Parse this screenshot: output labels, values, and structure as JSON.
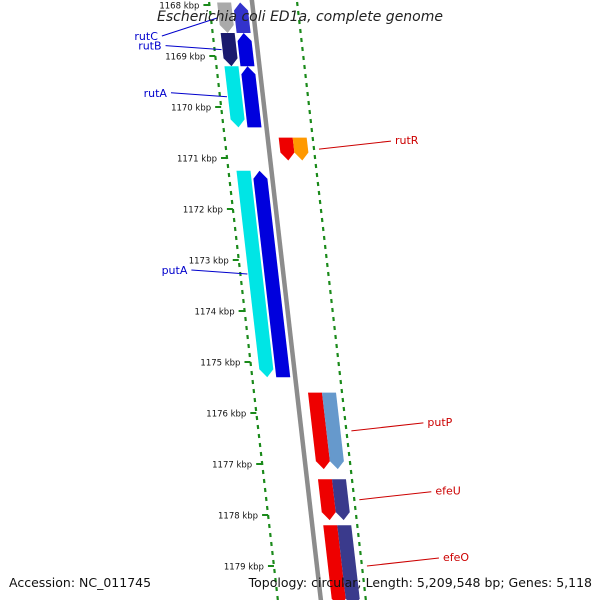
{
  "title": "Escherichia coli ED1a, complete genome",
  "footer": {
    "accession": "Accession: NC_011745",
    "topology": "Topology: circular; Length: 5,209,548 bp; Genes: 5,118"
  },
  "axis": {
    "ticks": [
      {
        "label": "1168 kbp",
        "kbp": 1168
      },
      {
        "label": "1169 kbp",
        "kbp": 1169
      },
      {
        "label": "1170 kbp",
        "kbp": 1170
      },
      {
        "label": "1171 kbp",
        "kbp": 1171
      },
      {
        "label": "1172 kbp",
        "kbp": 1172
      },
      {
        "label": "1173 kbp",
        "kbp": 1173
      },
      {
        "label": "1174 kbp",
        "kbp": 1174
      },
      {
        "label": "1175 kbp",
        "kbp": 1175
      },
      {
        "label": "1176 kbp",
        "kbp": 1176
      },
      {
        "label": "1177 kbp",
        "kbp": 1177
      },
      {
        "label": "1178 kbp",
        "kbp": 1178
      },
      {
        "label": "1179 kbp",
        "kbp": 1179
      }
    ]
  },
  "genes": [
    {
      "name": "rutC",
      "label_color": "#0000cc",
      "strand": "-",
      "start": 1167.95,
      "end": 1168.55,
      "fill": "#aaaaaa",
      "fill2": "#3333cc"
    },
    {
      "name": "rutB",
      "label_color": "#0000cc",
      "strand": "-",
      "start": 1168.55,
      "end": 1169.2,
      "fill": "#1a1a6e",
      "fill2": "#0000dd"
    },
    {
      "name": "rutA",
      "label_color": "#0000cc",
      "strand": "-",
      "start": 1169.2,
      "end": 1170.4,
      "fill": "#00e5e5",
      "fill2": "#0000dd"
    },
    {
      "name": "rutR",
      "label_color": "#cc0000",
      "strand": "+",
      "start": 1170.6,
      "end": 1171.05,
      "fill": "#ee0000",
      "fill2": "#ff9900"
    },
    {
      "name": "putA",
      "label_color": "#0000cc",
      "strand": "-",
      "start": 1171.25,
      "end": 1175.3,
      "fill": "#00e5e5",
      "fill2": "#0000dd"
    },
    {
      "name": "putP",
      "label_color": "#cc0000",
      "strand": "+",
      "start": 1175.6,
      "end": 1177.1,
      "fill": "#ee0000",
      "fill2": "#6699cc"
    },
    {
      "name": "efeU",
      "label_color": "#cc0000",
      "strand": "+",
      "start": 1177.3,
      "end": 1178.1,
      "fill": "#ee0000",
      "fill2": "#3a3a8c"
    },
    {
      "name": "efeO",
      "label_color": "#cc0000",
      "strand": "+",
      "start": 1178.2,
      "end": 1179.8,
      "fill": "#ee0000",
      "fill2": "#3a3a8c"
    }
  ]
}
